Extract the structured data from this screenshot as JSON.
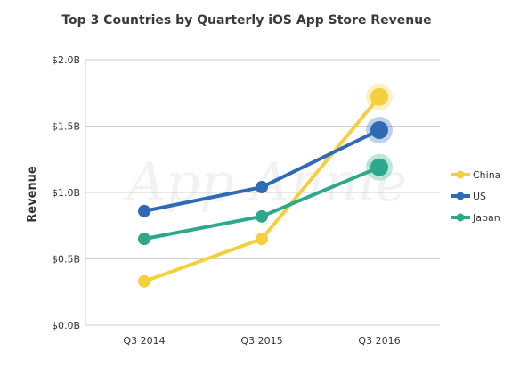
{
  "chart_data": {
    "type": "line",
    "title": "Top 3 Countries by Quarterly iOS App Store Revenue",
    "xlabel": "",
    "ylabel": "Revenue",
    "categories": [
      "Q3 2014",
      "Q3 2015",
      "Q3 2016"
    ],
    "y_ticks": [
      "$0.0B",
      "$0.5B",
      "$1.0B",
      "$1.5B",
      "$2.0B"
    ],
    "y_tick_values": [
      0,
      0.5,
      1.0,
      1.5,
      2.0
    ],
    "ylim": [
      0,
      2.0
    ],
    "grid": true,
    "legend_position": "right",
    "watermark": "App Annie",
    "series": [
      {
        "name": "China",
        "color": "#f4d03f",
        "values": [
          0.33,
          0.65,
          1.72
        ]
      },
      {
        "name": "US",
        "color": "#2e6bb4",
        "values": [
          0.86,
          1.04,
          1.47
        ]
      },
      {
        "name": "Japan",
        "color": "#2ea88a",
        "values": [
          0.65,
          0.82,
          1.19
        ]
      }
    ]
  }
}
